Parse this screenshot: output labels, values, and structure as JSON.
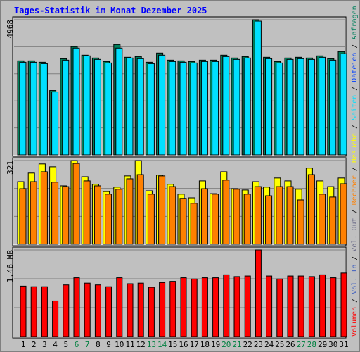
{
  "chart_data": [
    {
      "type": "bar",
      "title": "Tages-Statistik im Monat Dezember 2025",
      "ylim": [
        0,
        4968
      ],
      "yticks": [
        4968
      ],
      "grid": true,
      "series": [
        {
          "name": "Anfragen",
          "color": "#00805c",
          "values": [
            3458,
            3458,
            3406,
            2366,
            3536,
            3978,
            3666,
            3562,
            3432,
            4056,
            3588,
            3614,
            3406,
            3744,
            3484,
            3458,
            3432,
            3484,
            3484,
            3666,
            3562,
            3614,
            4968,
            3588,
            3432,
            3562,
            3588,
            3562,
            3640,
            3536,
            3796
          ]
        },
        {
          "name": "Dateien",
          "color": "#0040ff"
        },
        {
          "name": "Seiten",
          "color": "#00e0ff",
          "values": [
            3406,
            3406,
            3354,
            2314,
            3484,
            3926,
            3640,
            3510,
            3380,
            3926,
            3562,
            3536,
            3354,
            3666,
            3432,
            3406,
            3380,
            3432,
            3432,
            3614,
            3510,
            3562,
            4916,
            3536,
            3380,
            3510,
            3536,
            3510,
            3588,
            3484,
            3718
          ]
        }
      ]
    },
    {
      "type": "bar",
      "ylim": [
        0,
        321
      ],
      "yticks": [
        321
      ],
      "grid": true,
      "series": [
        {
          "name": "Besuche",
          "color": "#ffff00",
          "values": [
            240,
            273,
            308,
            297,
            224,
            321,
            259,
            230,
            202,
            219,
            262,
            321,
            205,
            265,
            230,
            192,
            178,
            243,
            194,
            278,
            213,
            208,
            240,
            219,
            254,
            243,
            211,
            292,
            243,
            221,
            254
          ]
        },
        {
          "name": "Rechner",
          "color": "#ff8000",
          "values": [
            213,
            240,
            278,
            238,
            221,
            310,
            243,
            224,
            192,
            211,
            251,
            267,
            192,
            262,
            221,
            176,
            157,
            213,
            192,
            246,
            211,
            192,
            221,
            186,
            221,
            221,
            170,
            267,
            192,
            181,
            232
          ]
        }
      ]
    },
    {
      "type": "bar",
      "ylim": [
        0,
        1.46
      ],
      "yticks": [
        {
          "value": 1.46,
          "label": "1.46 MB"
        }
      ],
      "grid": true,
      "legend_separator": " / ",
      "categories": [
        "1",
        "2",
        "3",
        "4",
        "5",
        "6",
        "7",
        "8",
        "9",
        "10",
        "11",
        "12",
        "13",
        "14",
        "15",
        "16",
        "17",
        "18",
        "19",
        "20",
        "21",
        "22",
        "23",
        "24",
        "25",
        "26",
        "27",
        "28",
        "29",
        "30",
        "31"
      ],
      "category_colors": [
        "#000000",
        "#000000",
        "#000000",
        "#000000",
        "#000000",
        "#008040",
        "#008040",
        "#000000",
        "#000000",
        "#000000",
        "#000000",
        "#000000",
        "#008040",
        "#008040",
        "#000000",
        "#000000",
        "#000000",
        "#000000",
        "#000000",
        "#008040",
        "#008040",
        "#000000",
        "#000000",
        "#000000",
        "#000000",
        "#000000",
        "#008040",
        "#008040",
        "#000000",
        "#000000",
        "#000000"
      ],
      "series": [
        {
          "name": "Vol. Out",
          "color": "#606080"
        },
        {
          "name": "Vol. In",
          "color": "#4060c0"
        },
        {
          "name": "Volumen",
          "color": "#ff0000",
          "values": [
            0.85,
            0.84,
            0.84,
            0.6,
            0.87,
            0.99,
            0.9,
            0.87,
            0.84,
            0.99,
            0.89,
            0.9,
            0.83,
            0.91,
            0.93,
            0.99,
            0.97,
            0.99,
            0.99,
            1.04,
            1.01,
            1.02,
            1.46,
            1.02,
            0.97,
            1.02,
            1.02,
            1.01,
            1.04,
            0.99,
            1.07
          ]
        }
      ]
    }
  ]
}
